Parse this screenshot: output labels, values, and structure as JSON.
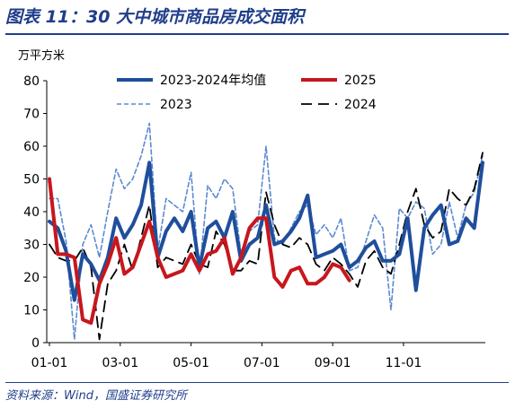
{
  "title": "图表 11：30 大中城市商品房成交面积",
  "source": "资料来源：Wind，国盛证券研究所",
  "colors": {
    "avg": "#1f4e9c",
    "y2025": "#c8161d",
    "y2023": "#5b8bd0",
    "y2024": "#000000",
    "title": "#1f3d8a"
  },
  "chart_data": {
    "type": "line",
    "ylabel": "万平方米",
    "ylim": [
      0,
      80
    ],
    "yticks": [
      0,
      10,
      20,
      30,
      40,
      50,
      60,
      70,
      80
    ],
    "x_range_weeks": [
      0,
      52
    ],
    "xtick_labels": [
      "01-01",
      "03-01",
      "05-01",
      "07-01",
      "09-01",
      "11-01"
    ],
    "xtick_weeks": [
      0,
      8.5,
      17,
      25.5,
      34,
      42.5
    ],
    "legend": [
      "2023-2024年均值",
      "2025",
      "2023",
      "2024"
    ],
    "legend_position": "top",
    "series": [
      {
        "name": "2023-2024年均值",
        "style": "solid-thick",
        "values": [
          37,
          35,
          28,
          13,
          27,
          24,
          19,
          26,
          38,
          32,
          36,
          42,
          55,
          26,
          34,
          38,
          34,
          40,
          23,
          35,
          37,
          32,
          40,
          25,
          30,
          32,
          42,
          30,
          31,
          34,
          38,
          45,
          26,
          27,
          28,
          30,
          23,
          25,
          29,
          31,
          25,
          25,
          27,
          38,
          16,
          35,
          39,
          42,
          30,
          31,
          38,
          35,
          55
        ]
      },
      {
        "name": "2025",
        "style": "solid-thick",
        "values": [
          50,
          27,
          27,
          26,
          7,
          6,
          18,
          24,
          32,
          21,
          23,
          30,
          37,
          26,
          20,
          21,
          22,
          27,
          22,
          27,
          28,
          32,
          21,
          26,
          35,
          38,
          38,
          20,
          17,
          22,
          23,
          18,
          18,
          20,
          24,
          23,
          19
        ]
      },
      {
        "name": "2023",
        "style": "dashed-thin",
        "values": [
          44,
          44,
          31,
          1,
          30,
          36,
          26,
          40,
          53,
          47,
          50,
          57,
          67,
          28,
          44,
          42,
          40,
          52,
          21,
          48,
          44,
          50,
          47,
          27,
          34,
          36,
          60,
          32,
          30,
          35,
          40,
          42,
          33,
          36,
          32,
          38,
          22,
          23,
          31,
          39,
          35,
          10,
          41,
          38,
          43,
          41,
          27,
          30,
          43,
          32,
          42,
          46,
          57
        ]
      },
      {
        "name": "2024",
        "style": "dashed-thick",
        "values": [
          30,
          26,
          25,
          25,
          29,
          23,
          1,
          18,
          22,
          30,
          22,
          32,
          42,
          23,
          26,
          25,
          24,
          30,
          24,
          23,
          34,
          30,
          22,
          22,
          25,
          24,
          46,
          36,
          30,
          29,
          32,
          30,
          24,
          22,
          26,
          24,
          21,
          17,
          25,
          28,
          23,
          21,
          30,
          40,
          47,
          36,
          32,
          34,
          47,
          44,
          42,
          47,
          58
        ]
      }
    ]
  }
}
